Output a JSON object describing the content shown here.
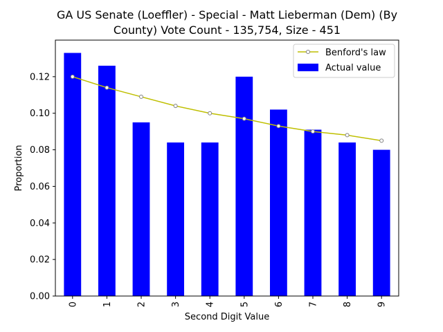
{
  "chart_data": {
    "type": "bar",
    "title_line1": "GA US Senate (Loeffler) - Special - Matt Lieberman (Dem) (By",
    "title_line2": "County) Vote Count - 135,754, Size - 451",
    "xlabel": "Second Digit Value",
    "ylabel": "Proportion",
    "categories": [
      "0",
      "1",
      "2",
      "3",
      "4",
      "5",
      "6",
      "7",
      "8",
      "9"
    ],
    "ylim": [
      0,
      0.14
    ],
    "yticks": [
      "0.00",
      "0.02",
      "0.04",
      "0.06",
      "0.08",
      "0.10",
      "0.12"
    ],
    "legend_position": "top-right",
    "grid": false,
    "series": [
      {
        "name": "Actual value",
        "kind": "bar",
        "color": "#0000ff",
        "values": [
          0.133,
          0.126,
          0.095,
          0.084,
          0.084,
          0.12,
          0.102,
          0.091,
          0.084,
          0.08
        ]
      },
      {
        "name": "Benford's law",
        "kind": "line",
        "color": "#bfbf00",
        "marker_color": "#808080",
        "values": [
          0.12,
          0.114,
          0.109,
          0.104,
          0.1,
          0.097,
          0.093,
          0.09,
          0.088,
          0.085
        ]
      }
    ]
  }
}
